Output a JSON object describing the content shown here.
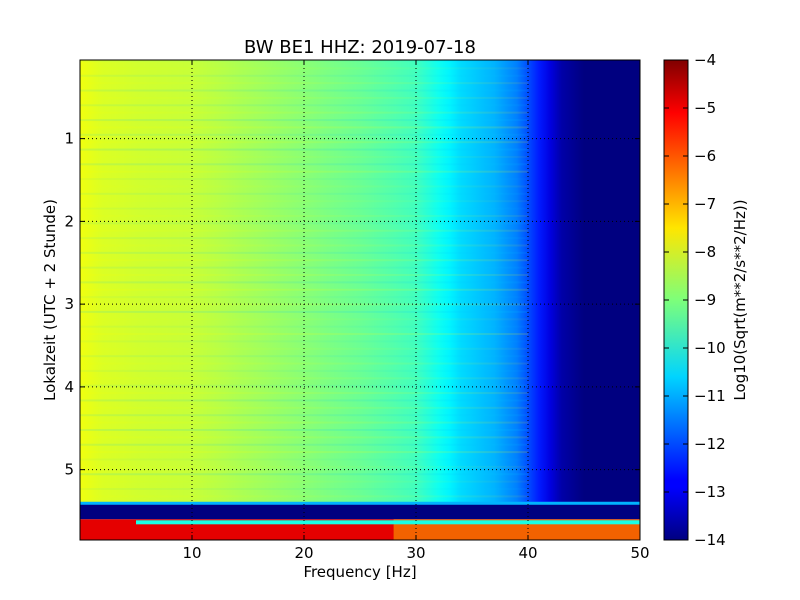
{
  "chart_data": {
    "type": "heatmap",
    "title": "BW BE1 HHZ: 2019-07-18",
    "xlabel": "Frequency [Hz]",
    "ylabel": "Lokalzeit (UTC + 2 Stunde)",
    "colorbar_label": "Log10(Sqrt(m**2/s**2/Hz))",
    "colormap": "jet",
    "grid": true,
    "xlim": [
      0,
      50
    ],
    "ylim": [
      5.85,
      0.05
    ],
    "clim": [
      -14,
      -4
    ],
    "x_ticks": [
      10,
      20,
      30,
      40,
      50
    ],
    "x_tick_labels": [
      "10",
      "20",
      "30",
      "40",
      "50"
    ],
    "y_ticks": [
      1,
      2,
      3,
      4,
      5
    ],
    "y_tick_labels": [
      "1",
      "2",
      "3",
      "4",
      "5"
    ],
    "colorbar_ticks": [
      -4,
      -5,
      -6,
      -7,
      -8,
      -9,
      -10,
      -11,
      -12,
      -13,
      -14
    ],
    "colorbar_tick_labels": [
      "−4",
      "−5",
      "−6",
      "−7",
      "−8",
      "−9",
      "−10",
      "−11",
      "−12",
      "−13",
      "−14"
    ],
    "spectrum_profile": {
      "frequency_hz": [
        0,
        2,
        5,
        10,
        15,
        20,
        25,
        30,
        32,
        34,
        37,
        39,
        41,
        43,
        45,
        50
      ],
      "log10_amplitude": [
        -7.9,
        -8.1,
        -8.2,
        -8.3,
        -8.6,
        -8.9,
        -9.2,
        -9.6,
        -10.1,
        -10.6,
        -11.0,
        -11.5,
        -12.5,
        -13.6,
        -14.0,
        -14.0
      ]
    },
    "bands": [
      {
        "time_start": 5.4,
        "time_end": 5.6,
        "level": -14,
        "label": "",
        "line_at_top": true
      },
      {
        "time_start": 5.6,
        "time_end": 5.85,
        "level": -5,
        "label": ""
      }
    ]
  }
}
